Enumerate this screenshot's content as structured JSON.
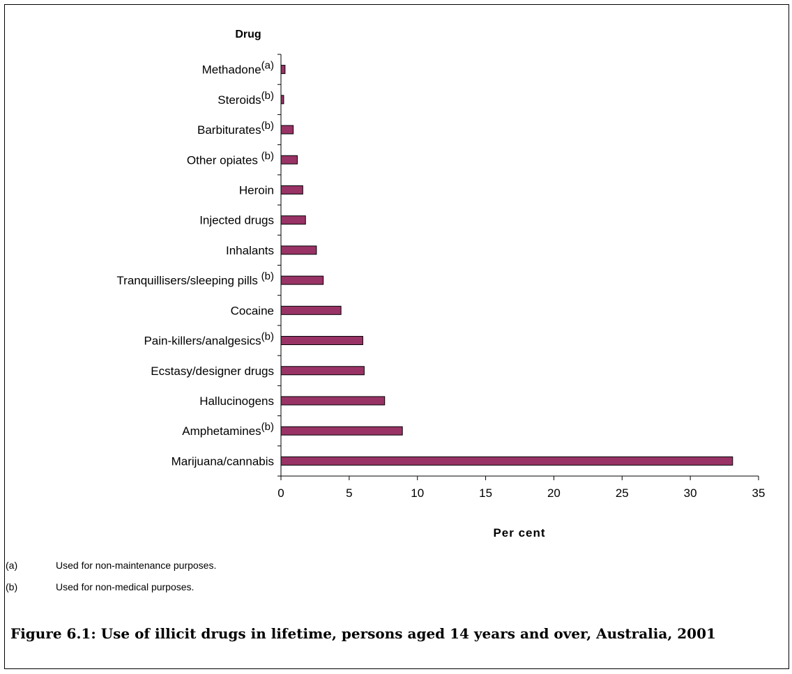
{
  "chart_data": {
    "type": "bar",
    "orientation": "horizontal",
    "ylabel": "Drug",
    "xlabel": "Per cent",
    "xlim": [
      0,
      35
    ],
    "xticks": [
      0,
      5,
      10,
      15,
      20,
      25,
      30,
      35
    ],
    "grid": false,
    "legend": "none",
    "bar_color": "#993366",
    "categories": [
      {
        "label": "Methadone",
        "sup": "(a)",
        "value": 0.3
      },
      {
        "label": "Steroids",
        "sup": "(b)",
        "value": 0.2
      },
      {
        "label": "Barbiturates",
        "sup": "(b)",
        "value": 0.9
      },
      {
        "label": "Other opiates ",
        "sup": "(b)",
        "value": 1.2
      },
      {
        "label": "Heroin",
        "sup": "",
        "value": 1.6
      },
      {
        "label": "Injected drugs",
        "sup": "",
        "value": 1.8
      },
      {
        "label": "Inhalants",
        "sup": "",
        "value": 2.6
      },
      {
        "label": "Tranquillisers/sleeping pills ",
        "sup": "(b)",
        "value": 3.1
      },
      {
        "label": "Cocaine",
        "sup": "",
        "value": 4.4
      },
      {
        "label": "Pain-killers/analgesics",
        "sup": "(b)",
        "value": 6.0
      },
      {
        "label": "Ecstasy/designer drugs",
        "sup": "",
        "value": 6.1
      },
      {
        "label": "Hallucinogens",
        "sup": "",
        "value": 7.6
      },
      {
        "label": "Amphetamines",
        "sup": "(b)",
        "value": 8.9
      },
      {
        "label": "Marijuana/cannabis",
        "sup": "",
        "value": 33.1
      }
    ]
  },
  "notes": [
    {
      "marker": "(a)",
      "text": "Used for non-maintenance purposes."
    },
    {
      "marker": "(b)",
      "text": "Used for non-medical purposes."
    }
  ],
  "caption": "Figure 6.1: Use of illicit drugs in lifetime, persons aged 14 years and over, Australia, 2001"
}
